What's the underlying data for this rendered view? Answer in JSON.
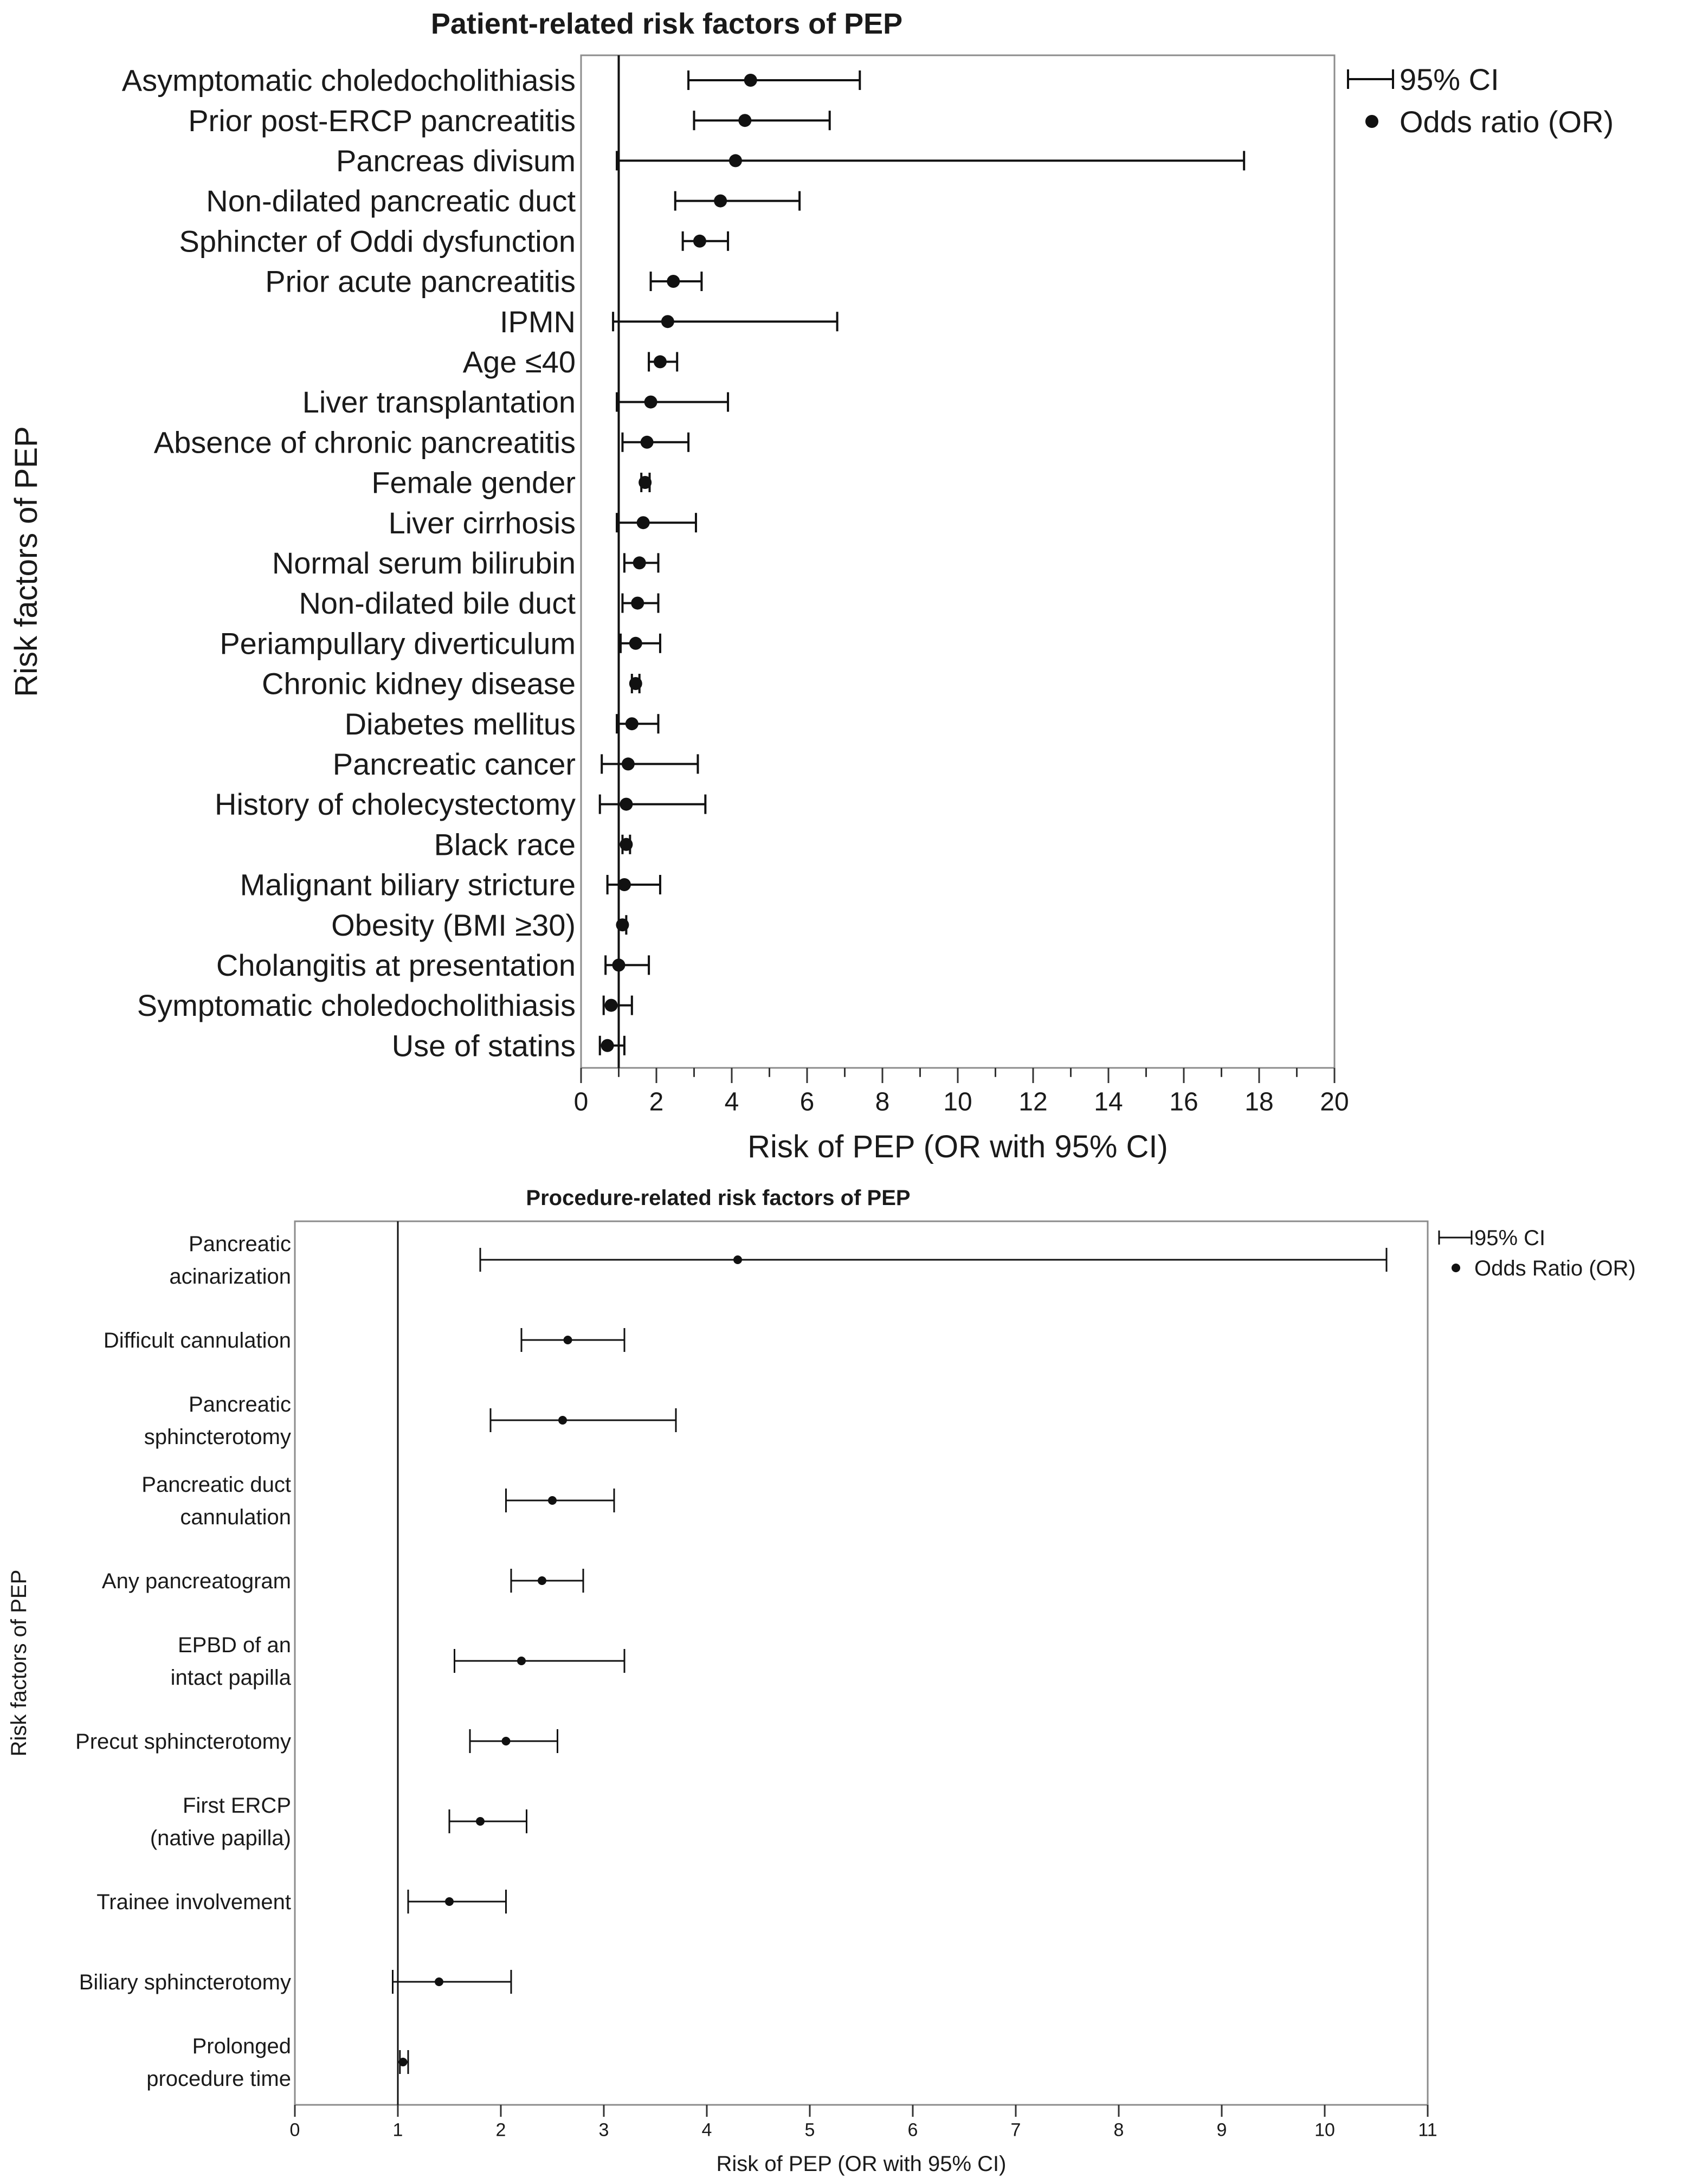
{
  "chart_data": [
    {
      "type": "forest",
      "title": "Patient-related risk factors of PEP",
      "xlabel": "Risk of PEP (OR with 95% CI)",
      "ylabel": "Risk factors of PEP",
      "xlim": [
        0,
        20
      ],
      "x_ticks": [
        "0",
        "2",
        "4",
        "6",
        "8",
        "10",
        "12",
        "14",
        "16",
        "18",
        "20"
      ],
      "reference_line": 1,
      "legend": {
        "placement": "right-top",
        "ci_label": "95% CI",
        "point_label": "Odds ratio (OR)"
      },
      "rows": [
        {
          "label": "Asymptomatic choledocholithiasis",
          "or": 4.5,
          "lo": 2.85,
          "hi": 7.4
        },
        {
          "label": "Prior post-ERCP pancreatitis",
          "or": 4.35,
          "lo": 3.0,
          "hi": 6.6
        },
        {
          "label": "Pancreas divisum",
          "or": 4.1,
          "lo": 0.95,
          "hi": 17.6
        },
        {
          "label": "Non-dilated pancreatic duct",
          "or": 3.7,
          "lo": 2.5,
          "hi": 5.8
        },
        {
          "label": "Sphincter of Oddi dysfunction",
          "or": 3.15,
          "lo": 2.7,
          "hi": 3.9
        },
        {
          "label": "Prior acute pancreatitis",
          "or": 2.45,
          "lo": 1.85,
          "hi": 3.2
        },
        {
          "label": "IPMN",
          "or": 2.3,
          "lo": 0.85,
          "hi": 6.8
        },
        {
          "label": "Age ≤40",
          "or": 2.1,
          "lo": 1.8,
          "hi": 2.55
        },
        {
          "label": "Liver transplantation",
          "or": 1.85,
          "lo": 0.95,
          "hi": 3.9
        },
        {
          "label": "Absence of chronic pancreatitis",
          "or": 1.75,
          "lo": 1.1,
          "hi": 2.85
        },
        {
          "label": "Female gender",
          "or": 1.7,
          "lo": 1.6,
          "hi": 1.82
        },
        {
          "label": "Liver cirrhosis",
          "or": 1.65,
          "lo": 0.95,
          "hi": 3.05
        },
        {
          "label": "Normal serum bilirubin",
          "or": 1.55,
          "lo": 1.15,
          "hi": 2.05
        },
        {
          "label": "Non-dilated bile duct",
          "or": 1.5,
          "lo": 1.1,
          "hi": 2.05
        },
        {
          "label": "Periampullary diverticulum",
          "or": 1.45,
          "lo": 1.05,
          "hi": 2.1
        },
        {
          "label": "Chronic kidney disease",
          "or": 1.45,
          "lo": 1.35,
          "hi": 1.55
        },
        {
          "label": "Diabetes mellitus",
          "or": 1.35,
          "lo": 0.95,
          "hi": 2.05
        },
        {
          "label": "Pancreatic cancer",
          "or": 1.25,
          "lo": 0.55,
          "hi": 3.1
        },
        {
          "label": "History of cholecystectomy",
          "or": 1.2,
          "lo": 0.5,
          "hi": 3.3
        },
        {
          "label": "Black race",
          "or": 1.2,
          "lo": 1.1,
          "hi": 1.3
        },
        {
          "label": "Malignant biliary stricture",
          "or": 1.15,
          "lo": 0.7,
          "hi": 2.1
        },
        {
          "label": "Obesity (BMI ≥30)",
          "or": 1.1,
          "lo": 1.0,
          "hi": 1.2
        },
        {
          "label": "Cholangitis at presentation",
          "or": 1.0,
          "lo": 0.65,
          "hi": 1.8
        },
        {
          "label": "Symptomatic choledocholithiasis",
          "or": 0.8,
          "lo": 0.6,
          "hi": 1.35
        },
        {
          "label": "Use of statins",
          "or": 0.7,
          "lo": 0.5,
          "hi": 1.15
        }
      ]
    },
    {
      "type": "forest",
      "title": "Procedure-related risk factors of PEP",
      "xlabel": "Risk of PEP (OR with 95% CI)",
      "ylabel": "Risk factors of PEP",
      "xlim": [
        0,
        11
      ],
      "x_ticks": [
        "0",
        "1",
        "2",
        "3",
        "4",
        "5",
        "6",
        "7",
        "8",
        "9",
        "10",
        "11"
      ],
      "reference_line": 1,
      "legend": {
        "placement": "right-top",
        "ci_label": "95% CI",
        "point_label": "Odds Ratio (OR)"
      },
      "rows": [
        {
          "label": [
            "Pancreatic",
            "acinarization"
          ],
          "or": 4.3,
          "lo": 1.8,
          "hi": 10.6
        },
        {
          "label": [
            "Difficult cannulation"
          ],
          "or": 2.65,
          "lo": 2.2,
          "hi": 3.2
        },
        {
          "label": [
            "Pancreatic",
            "sphincterotomy"
          ],
          "or": 2.6,
          "lo": 1.9,
          "hi": 3.7
        },
        {
          "label": [
            "Pancreatic duct",
            "cannulation"
          ],
          "or": 2.5,
          "lo": 2.05,
          "hi": 3.1
        },
        {
          "label": [
            "Any pancreatogram"
          ],
          "or": 2.4,
          "lo": 2.1,
          "hi": 2.8
        },
        {
          "label": [
            "EPBD of an",
            "intact papilla"
          ],
          "or": 2.2,
          "lo": 1.55,
          "hi": 3.2
        },
        {
          "label": [
            "Precut sphincterotomy"
          ],
          "or": 2.05,
          "lo": 1.7,
          "hi": 2.55
        },
        {
          "label": [
            "First ERCP",
            "(native papilla)"
          ],
          "or": 1.8,
          "lo": 1.5,
          "hi": 2.25
        },
        {
          "label": [
            "Trainee involvement"
          ],
          "or": 1.5,
          "lo": 1.1,
          "hi": 2.05
        },
        {
          "label": [
            "Biliary sphincterotomy"
          ],
          "or": 1.4,
          "lo": 0.95,
          "hi": 2.1
        },
        {
          "label": [
            "Prolonged",
            "procedure time"
          ],
          "or": 1.05,
          "lo": 1.02,
          "hi": 1.1
        }
      ]
    }
  ]
}
